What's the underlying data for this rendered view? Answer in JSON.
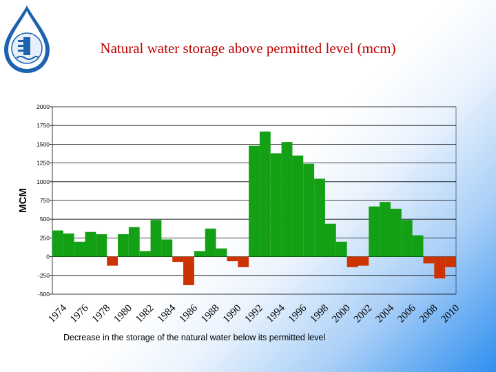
{
  "header": {
    "title": "Natural water storage above permitted level (mcm)"
  },
  "caption": "Decrease in the storage of the natural water below its permitted level",
  "logo": {
    "icon": "water-authority-logo-icon"
  },
  "colors": {
    "positive": "#14a014",
    "negative": "#cc3300",
    "title": "#c00000"
  },
  "chart_data": {
    "type": "bar",
    "title": "Natural water storage above permitted level (mcm)",
    "xlabel": "",
    "ylabel": "MCM",
    "ylim": [
      -500,
      2000
    ],
    "yticks": [
      2000,
      1750,
      1500,
      1250,
      1000,
      750,
      500,
      250,
      0,
      -250,
      -500
    ],
    "grid": true,
    "legend": "none",
    "x_tick_labels": [
      "1974",
      "1976",
      "1978",
      "1980",
      "1982",
      "1984",
      "1986",
      "1988",
      "1990",
      "1992",
      "1994",
      "1996",
      "1998",
      "2000",
      "2002",
      "2004",
      "2006",
      "2008",
      "2010"
    ],
    "categories": [
      "1974",
      "1975",
      "1976",
      "1977",
      "1978",
      "1979",
      "1980",
      "1981",
      "1982",
      "1983",
      "1984",
      "1985",
      "1986",
      "1987",
      "1988",
      "1989",
      "1990",
      "1991",
      "1992",
      "1993",
      "1994",
      "1995",
      "1996",
      "1997",
      "1998",
      "1999",
      "2000",
      "2001",
      "2002",
      "2003",
      "2004",
      "2005",
      "2006",
      "2007",
      "2008",
      "2009",
      "2010"
    ],
    "values": [
      350,
      310,
      200,
      330,
      300,
      -120,
      300,
      395,
      75,
      490,
      230,
      -70,
      -380,
      75,
      375,
      110,
      -60,
      -140,
      1480,
      1670,
      1380,
      1530,
      1350,
      1240,
      1040,
      440,
      200,
      -140,
      -120,
      670,
      730,
      640,
      490,
      285,
      -90,
      -290,
      -140
    ]
  }
}
